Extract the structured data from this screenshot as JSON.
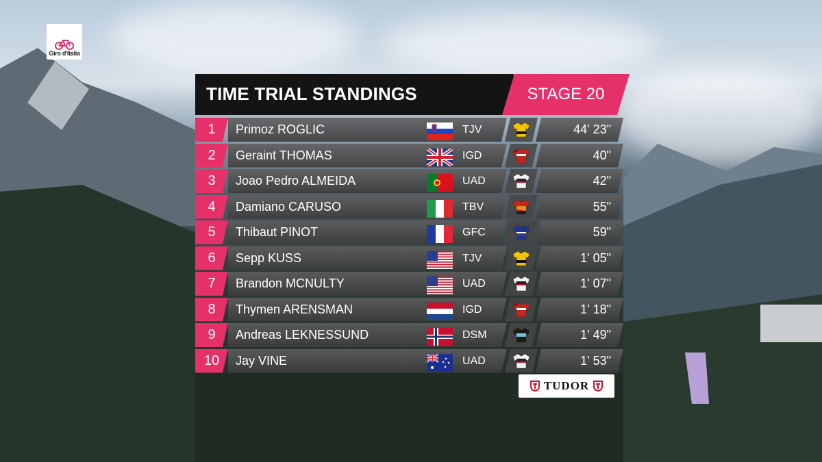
{
  "logo": {
    "text": "Giro d'Italia"
  },
  "header": {
    "title": "TIME TRIAL STANDINGS",
    "stage": "STAGE 20"
  },
  "rows": [
    {
      "pos": "1",
      "name": "Primoz ROGLIC",
      "flag": "SLO",
      "team": "TJV",
      "jersey": "jumbo",
      "time": "44' 23\""
    },
    {
      "pos": "2",
      "name": "Geraint THOMAS",
      "flag": "GBR",
      "team": "IGD",
      "jersey": "ineos",
      "time": "40\""
    },
    {
      "pos": "3",
      "name": "Joao Pedro ALMEIDA",
      "flag": "POR",
      "team": "UAD",
      "jersey": "uae",
      "time": "42\""
    },
    {
      "pos": "4",
      "name": "Damiano CARUSO",
      "flag": "ITA",
      "team": "TBV",
      "jersey": "bahrain",
      "time": "55\""
    },
    {
      "pos": "5",
      "name": "Thibaut PINOT",
      "flag": "FRA",
      "team": "GFC",
      "jersey": "groupama",
      "time": "59\""
    },
    {
      "pos": "6",
      "name": "Sepp KUSS",
      "flag": "USA",
      "team": "TJV",
      "jersey": "jumbo",
      "time": "1' 05\""
    },
    {
      "pos": "7",
      "name": "Brandon MCNULTY",
      "flag": "USA",
      "team": "UAD",
      "jersey": "uae",
      "time": "1' 07\""
    },
    {
      "pos": "8",
      "name": "Thymen ARENSMAN",
      "flag": "NED",
      "team": "IGD",
      "jersey": "ineos",
      "time": "1' 18\""
    },
    {
      "pos": "9",
      "name": "Andreas LEKNESSUND",
      "flag": "NOR",
      "team": "DSM",
      "jersey": "dsm",
      "time": "1' 49\""
    },
    {
      "pos": "10",
      "name": "Jay VINE",
      "flag": "AUS",
      "team": "UAD",
      "jersey": "uae",
      "time": "1' 53\""
    }
  ],
  "sponsor": {
    "text": "TUDOR"
  },
  "colors": {
    "accent": "#e6306a",
    "header_bg": "#141414"
  }
}
